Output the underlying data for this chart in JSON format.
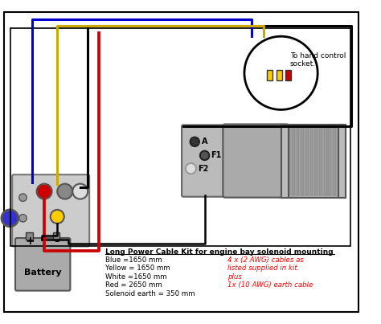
{
  "bg_color": "#ffffff",
  "text_title": "Long Power Cable Kit for engine bay solenoid mounting",
  "text_lines_black": [
    "Blue =1650 mm",
    "Yellow = 1650 mm",
    "White =1650 mm",
    "Red = 2650 mm",
    "Solenoid earth = 350 mm"
  ],
  "text_lines_red": [
    "4 x (2 AWG) cables as",
    "listed supplied in kit.",
    "plus",
    "1x (10 AWG) earth cable"
  ],
  "label_hand_control_1": "To hand control",
  "label_hand_control_2": "socket.",
  "label_battery": "Battery",
  "label_A": "A",
  "label_F1": "F1",
  "label_F2": "F2",
  "wire_blue": "#0000cc",
  "wire_red": "#cc0000",
  "wire_yellow": "#ccaa00",
  "wire_black": "#000000",
  "wire_white": "#aaaaaa"
}
